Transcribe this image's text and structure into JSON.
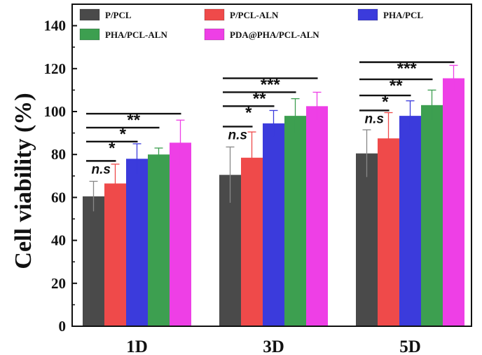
{
  "chart_data": {
    "type": "bar",
    "title": "",
    "xlabel": "",
    "ylabel": "Cell viability (%)",
    "ylim": [
      0,
      150
    ],
    "yticks": [
      "0",
      "20",
      "40",
      "60",
      "80",
      "100",
      "120",
      "140"
    ],
    "categories": [
      "1D",
      "3D",
      "5D"
    ],
    "legend_position": "top",
    "series": [
      {
        "name": "P/PCL",
        "color": "#4a4a4a",
        "values": [
          60.5,
          70.5,
          80.5
        ],
        "errors": [
          7,
          13,
          11
        ]
      },
      {
        "name": "P/PCL-ALN",
        "color": "#ef4a4a",
        "values": [
          66.5,
          78.5,
          87.5
        ],
        "errors": [
          9,
          12,
          12
        ]
      },
      {
        "name": "PHA/PCL",
        "color": "#3b3bdc",
        "values": [
          78,
          94.5,
          98
        ],
        "errors": [
          7,
          6,
          7
        ]
      },
      {
        "name": "PHA/PCL-ALN",
        "color": "#3d9f50",
        "values": [
          80,
          98,
          103
        ],
        "errors": [
          3,
          8,
          7
        ]
      },
      {
        "name": "PDA@PHA/PCL-ALN",
        "color": "#ee3fe6",
        "values": [
          85.5,
          102.5,
          115.5
        ],
        "errors": [
          10.5,
          6.5,
          6
        ]
      }
    ],
    "significance": [
      [
        {
          "label": "n.s",
          "to": 1,
          "y": 77
        },
        {
          "label": "*",
          "to": 2,
          "y": 86
        },
        {
          "label": "*",
          "to": 3,
          "y": 92.5
        },
        {
          "label": "**",
          "to": 4,
          "y": 99
        }
      ],
      [
        {
          "label": "n.s",
          "to": 1,
          "y": 93
        },
        {
          "label": "*",
          "to": 2,
          "y": 102.5
        },
        {
          "label": "**",
          "to": 3,
          "y": 109
        },
        {
          "label": "***",
          "to": 4,
          "y": 115.5
        }
      ],
      [
        {
          "label": "n.s",
          "to": 1,
          "y": 100.5
        },
        {
          "label": "*",
          "to": 2,
          "y": 107.5
        },
        {
          "label": "**",
          "to": 3,
          "y": 115
        },
        {
          "label": "***",
          "to": 4,
          "y": 123
        }
      ]
    ]
  }
}
